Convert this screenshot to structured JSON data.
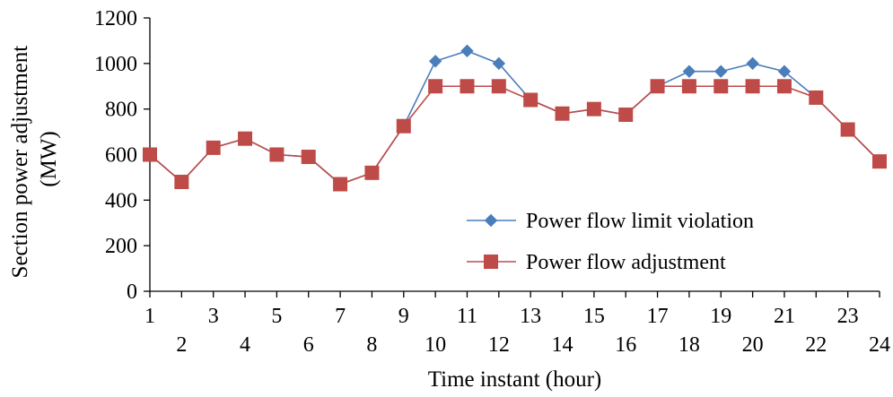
{
  "chart_data": {
    "type": "line",
    "xlabel": "Time instant (hour)",
    "ylabel_lines": [
      "Section power adjustment",
      "(MW)"
    ],
    "ylim": [
      0,
      1200
    ],
    "yticks": [
      0,
      200,
      400,
      600,
      800,
      1000,
      1200
    ],
    "categories": [
      "1",
      "2",
      "3",
      "4",
      "5",
      "6",
      "7",
      "8",
      "9",
      "10",
      "11",
      "12",
      "13",
      "14",
      "15",
      "16",
      "17",
      "18",
      "19",
      "20",
      "21",
      "22",
      "23",
      "24"
    ],
    "legend_position": "lower-right",
    "grid": false,
    "series": [
      {
        "name": "Power flow limit violation",
        "marker": "diamond",
        "color": "#4a7ebb",
        "values": [
          600,
          480,
          630,
          670,
          600,
          590,
          470,
          520,
          725,
          1010,
          1055,
          1000,
          840,
          780,
          800,
          775,
          900,
          965,
          965,
          1000,
          965,
          850,
          710,
          570
        ]
      },
      {
        "name": "Power flow adjustment",
        "marker": "square",
        "color": "#be4b48",
        "values": [
          600,
          480,
          630,
          670,
          600,
          590,
          470,
          520,
          725,
          900,
          900,
          900,
          840,
          780,
          800,
          775,
          900,
          900,
          900,
          900,
          900,
          850,
          710,
          570
        ]
      }
    ]
  }
}
